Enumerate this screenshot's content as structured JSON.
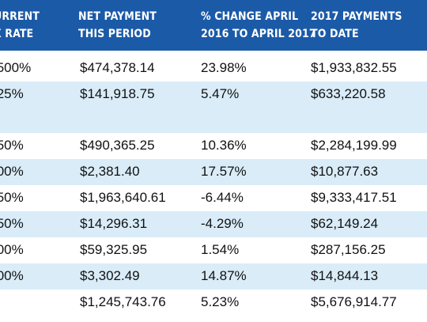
{
  "headers": [
    {
      "line1": "URRENT",
      "line2": "X RATE"
    },
    {
      "line1": "NET PAYMENT",
      "line2": "THIS PERIOD"
    },
    {
      "line1": "% CHANGE APRIL",
      "line2": "2016 TO APRIL 2017"
    },
    {
      "line1": "2017 PAYMENTS",
      "line2": "TO DATE"
    }
  ],
  "rows": [
    {
      "rate": ".500%",
      "net": "$474,378.14",
      "change": "23.98%",
      "ytd": "$1,933,832.55"
    },
    {
      "rate": ".25%",
      "net": "$141,918.75",
      "change": "5.47%",
      "ytd": "$633,220.58"
    },
    {
      "rate": ".50%",
      "net": "$490,365.25",
      "change": "10.36%",
      "ytd": "$2,284,199.99"
    },
    {
      "rate": ".00%",
      "net": "$2,381.40",
      "change": "17.57%",
      "ytd": "$10,877.63"
    },
    {
      "rate": ".50%",
      "net": "$1,963,640.61",
      "change": "-6.44%",
      "ytd": "$9,333,417.51"
    },
    {
      "rate": ".50%",
      "net": "$14,296.31",
      "change": "-4.29%",
      "ytd": "$62,149.24"
    },
    {
      "rate": ".00%",
      "net": "$59,325.95",
      "change": "1.54%",
      "ytd": "$287,156.25"
    },
    {
      "rate": ".00%",
      "net": "$3,302.49",
      "change": "14.87%",
      "ytd": "$14,844.13"
    },
    {
      "rate": "",
      "net": "$1,245,743.76",
      "change": "5.23%",
      "ytd": "$5,676,914.77"
    }
  ],
  "colors": {
    "header_bg": "#1b5aa7",
    "header_text": "#ffffff",
    "shade_bg": "#d9ecf8",
    "text": "#111111"
  }
}
